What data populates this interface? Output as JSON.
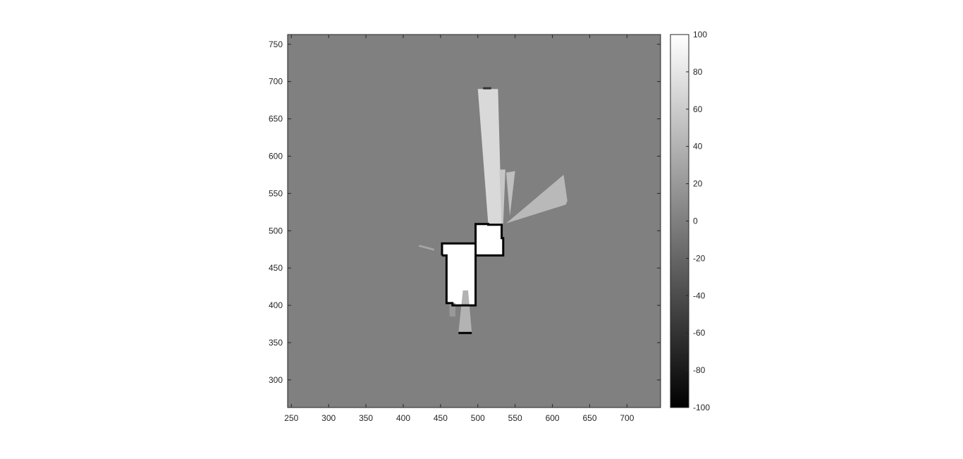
{
  "chart_data": {
    "type": "heatmap",
    "title": "",
    "xlabel": "",
    "ylabel": "",
    "xlim": [
      245,
      745
    ],
    "ylim": [
      263,
      763
    ],
    "xticks": [
      250,
      300,
      350,
      400,
      450,
      500,
      550,
      600,
      650,
      700
    ],
    "yticks": [
      300,
      350,
      400,
      450,
      500,
      550,
      600,
      650,
      700,
      750
    ],
    "grid": false,
    "colormap": "gray",
    "background_value": 0,
    "colorbar": {
      "limits": [
        -100,
        100
      ],
      "ticks": [
        100,
        80,
        60,
        40,
        20,
        0,
        -20,
        -40,
        -60,
        -80,
        -100
      ],
      "location": "right"
    },
    "regions": [
      {
        "name": "free-space-room-left",
        "value": 100,
        "polygon": [
          [
            452,
            483
          ],
          [
            497,
            483
          ],
          [
            497,
            467
          ],
          [
            497,
            400
          ],
          [
            466,
            400
          ],
          [
            466,
            403
          ],
          [
            458,
            403
          ],
          [
            458,
            467
          ],
          [
            452,
            467
          ]
        ]
      },
      {
        "name": "free-space-room-right",
        "value": 100,
        "polygon": [
          [
            497,
            467
          ],
          [
            534,
            467
          ],
          [
            534,
            490
          ],
          [
            532,
            490
          ],
          [
            532,
            508
          ],
          [
            514,
            508
          ],
          [
            514,
            509
          ],
          [
            497,
            509
          ]
        ]
      },
      {
        "name": "scan-cone-north",
        "value": 70,
        "polygon": [
          [
            500,
            690
          ],
          [
            527,
            690
          ],
          [
            532,
            508
          ],
          [
            514,
            508
          ]
        ]
      },
      {
        "name": "scan-corridor-north-right",
        "value": 55,
        "polygon": [
          [
            529,
            582
          ],
          [
            537,
            582
          ],
          [
            534,
            510
          ],
          [
            532,
            508
          ]
        ]
      },
      {
        "name": "scan-cone-northeast",
        "value": 50,
        "polygon": [
          [
            538,
            578
          ],
          [
            550,
            580
          ],
          [
            543,
            520
          ]
        ]
      },
      {
        "name": "scan-fan-east",
        "value": 45,
        "polygon": [
          [
            538,
            510
          ],
          [
            615,
            575
          ],
          [
            620,
            540
          ],
          [
            618,
            535
          ]
        ]
      },
      {
        "name": "scan-cone-south",
        "value": 40,
        "polygon": [
          [
            480,
            420
          ],
          [
            487,
            420
          ],
          [
            492,
            363
          ],
          [
            474,
            363
          ]
        ]
      },
      {
        "name": "scan-strip-south-left",
        "value": 20,
        "polygon": [
          [
            462,
            403
          ],
          [
            470,
            403
          ],
          [
            470,
            385
          ],
          [
            462,
            385
          ]
        ]
      },
      {
        "name": "scan-ray-west",
        "value": 30,
        "polygon": [
          [
            420,
            479
          ],
          [
            442,
            473
          ],
          [
            441,
            476
          ],
          [
            422,
            481
          ]
        ]
      }
    ],
    "obstacles": [
      {
        "name": "wall-room-left",
        "value": -100,
        "points": [
          [
            452,
            467
          ],
          [
            452,
            483
          ],
          [
            497,
            483
          ],
          [
            497,
            467
          ],
          [
            497,
            509
          ],
          [
            514,
            509
          ],
          [
            514,
            508
          ],
          [
            532,
            508
          ],
          [
            532,
            490
          ],
          [
            534,
            490
          ],
          [
            534,
            467
          ],
          [
            497,
            467
          ],
          [
            497,
            400
          ],
          [
            466,
            400
          ],
          [
            466,
            403
          ],
          [
            458,
            403
          ],
          [
            458,
            467
          ],
          [
            452,
            467
          ]
        ]
      },
      {
        "name": "wall-south-end",
        "value": -100,
        "points": [
          [
            474,
            363
          ],
          [
            492,
            363
          ]
        ]
      },
      {
        "name": "wall-north-end",
        "value": -60,
        "points": [
          [
            507,
            691
          ],
          [
            518,
            691
          ]
        ]
      }
    ]
  }
}
